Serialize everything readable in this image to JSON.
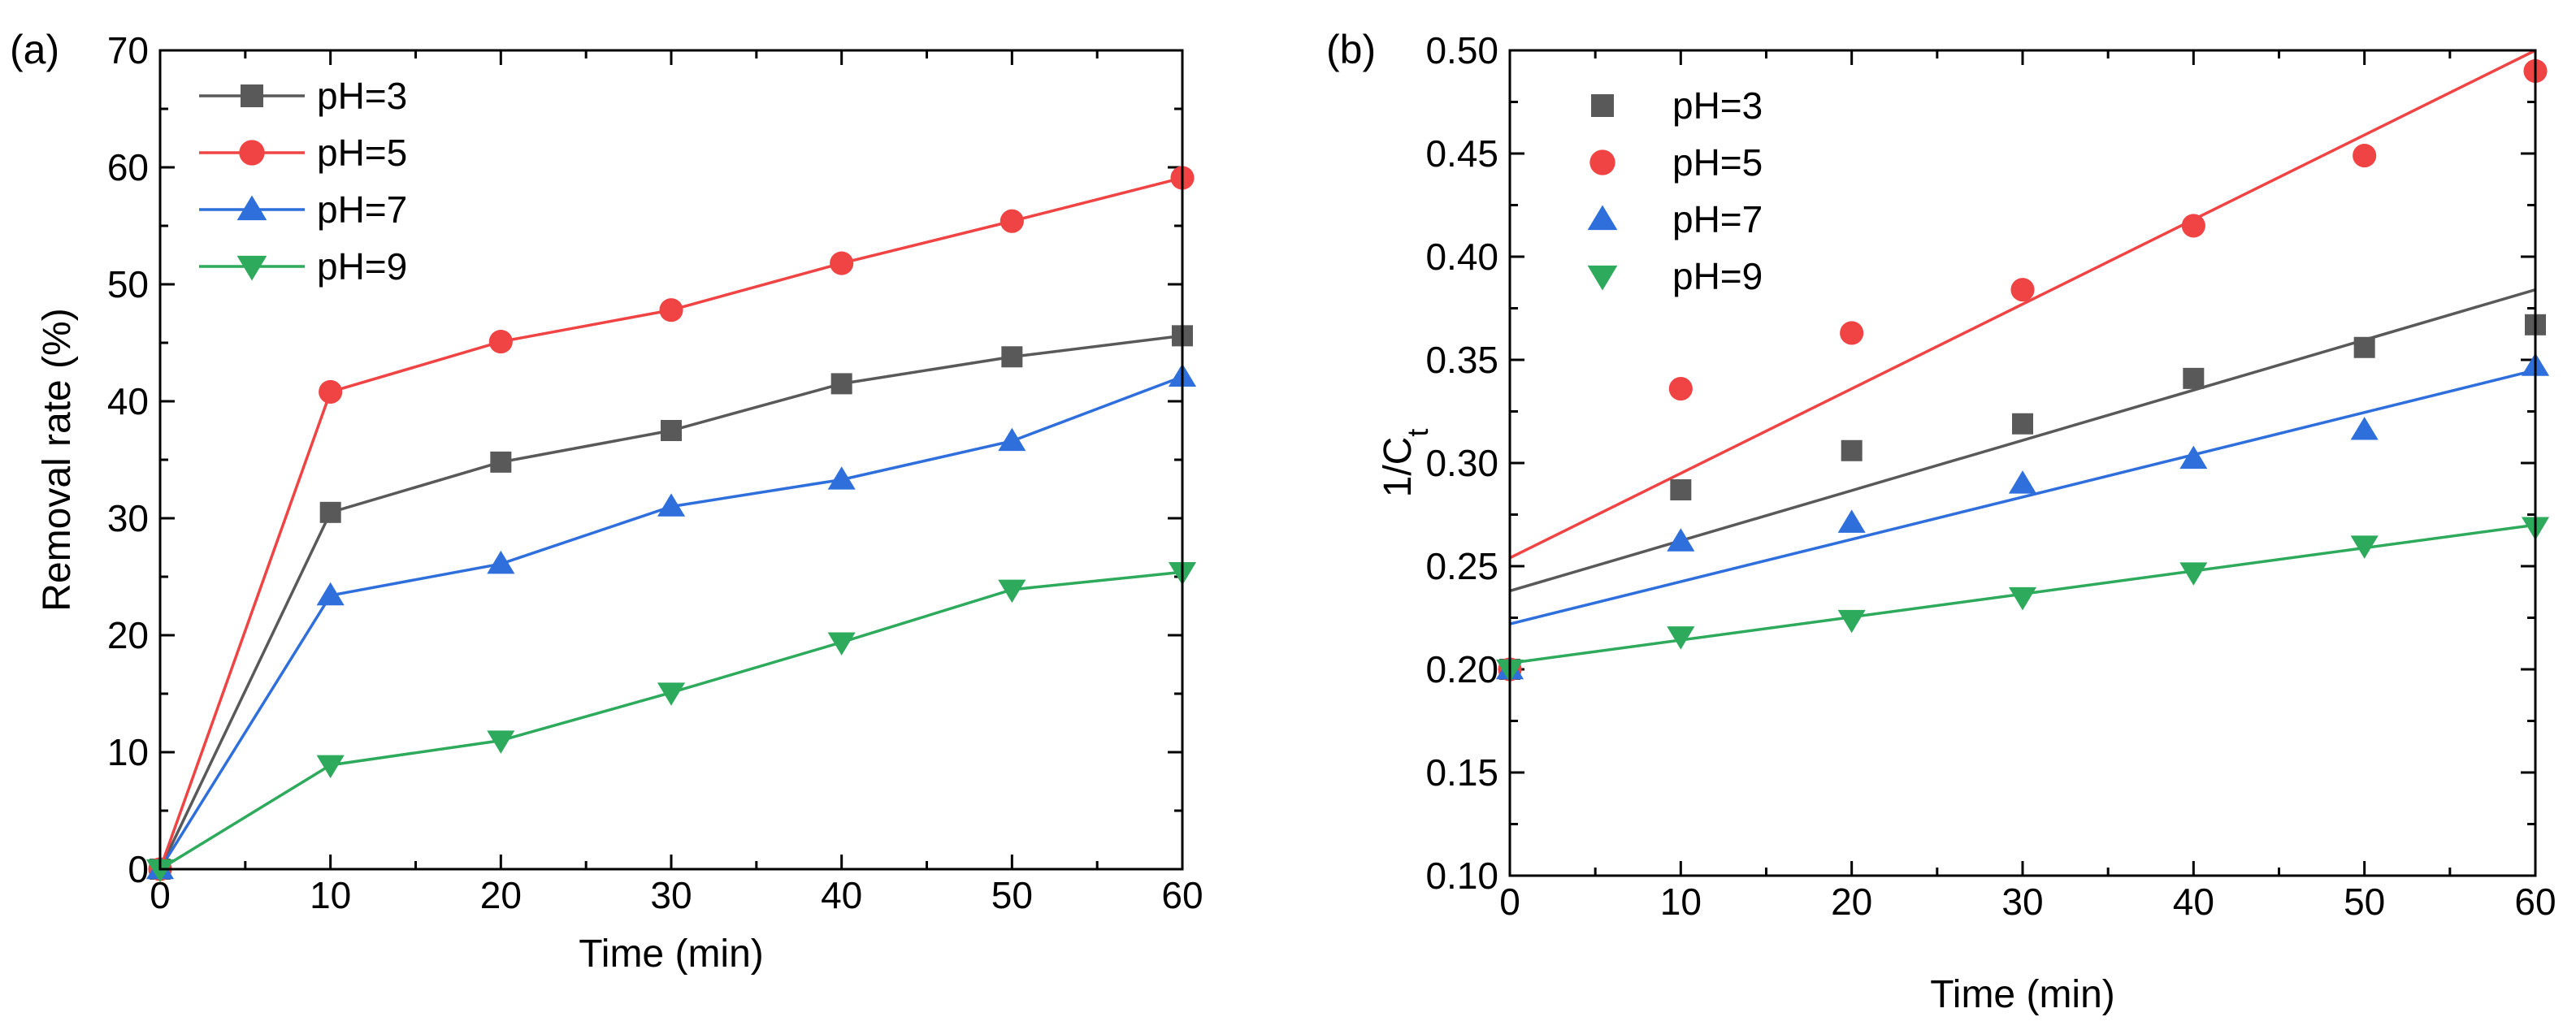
{
  "chart_data": [
    {
      "panel_label": "(a)",
      "type": "line",
      "markers": true,
      "xlabel": "Time (min)",
      "ylabel": "Removal rate (%)",
      "xlim": [
        0,
        60
      ],
      "ylim": [
        0,
        70
      ],
      "xticks": [
        0,
        10,
        20,
        30,
        40,
        50,
        60
      ],
      "yticks": [
        0,
        10,
        20,
        30,
        40,
        50,
        60,
        70
      ],
      "legend_position": "top-left",
      "x": [
        0,
        10,
        20,
        30,
        40,
        50,
        60
      ],
      "series": [
        {
          "name": "pH=3",
          "color": "#595959",
          "marker": "square",
          "values": [
            0,
            30.5,
            34.8,
            37.5,
            41.5,
            43.8,
            45.6
          ]
        },
        {
          "name": "pH=5",
          "color": "#f04343",
          "marker": "circle",
          "values": [
            0,
            40.8,
            45.1,
            47.8,
            51.8,
            55.4,
            59.1
          ]
        },
        {
          "name": "pH=7",
          "color": "#2f6fdc",
          "marker": "triangle-up",
          "values": [
            0,
            23.4,
            26.1,
            31.0,
            33.3,
            36.6,
            42.1
          ]
        },
        {
          "name": "pH=9",
          "color": "#2eaa5c",
          "marker": "triangle-down",
          "values": [
            0,
            8.9,
            11.0,
            15.1,
            19.4,
            23.9,
            25.4
          ]
        }
      ]
    },
    {
      "panel_label": "(b)",
      "type": "scatter",
      "fit_lines": true,
      "xlabel": "Time (min)",
      "ylabel_main": "1/C",
      "ylabel_sub": "t",
      "xlim": [
        0,
        60
      ],
      "ylim": [
        0.1,
        0.5
      ],
      "xticks": [
        0,
        10,
        20,
        30,
        40,
        50,
        60
      ],
      "yticks": [
        "0.10",
        "0.15",
        "0.20",
        "0.25",
        "0.30",
        "0.35",
        "0.40",
        "0.45",
        "0.50"
      ],
      "legend_position": "top-left",
      "x": [
        0,
        10,
        20,
        30,
        40,
        50,
        60
      ],
      "series": [
        {
          "name": "pH=3",
          "color": "#595959",
          "marker": "square",
          "values": [
            0.2,
            0.287,
            0.306,
            0.319,
            0.341,
            0.356,
            0.367
          ],
          "fit": [
            0.238,
            0.384
          ]
        },
        {
          "name": "pH=5",
          "color": "#f04343",
          "marker": "circle",
          "values": [
            0.2,
            0.336,
            0.363,
            0.384,
            0.415,
            0.449,
            0.49
          ],
          "fit": [
            0.254,
            0.5
          ]
        },
        {
          "name": "pH=7",
          "color": "#2f6fdc",
          "marker": "triangle-up",
          "values": [
            0.2,
            0.262,
            0.271,
            0.29,
            0.302,
            0.316,
            0.347
          ],
          "fit": [
            0.222,
            0.345
          ]
        },
        {
          "name": "pH=9",
          "color": "#2eaa5c",
          "marker": "triangle-down",
          "values": [
            0.2,
            0.216,
            0.224,
            0.235,
            0.247,
            0.26,
            0.269
          ],
          "fit": [
            0.203,
            0.27
          ]
        }
      ]
    }
  ]
}
